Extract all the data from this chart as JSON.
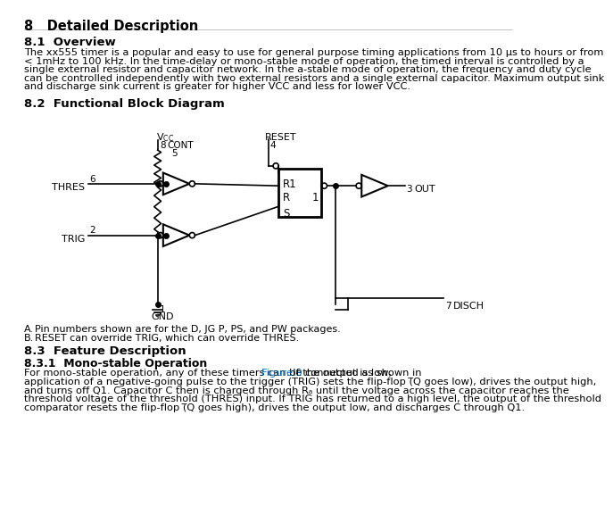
{
  "title_section": "8   Detailed Description",
  "section_81": "8.1  Overview",
  "para_81_lines": [
    "The xx555 timer is a popular and easy to use for general purpose timing applications from 10 μs to hours or from",
    "< 1mHz to 100 kHz. In the time-delay or mono-stable mode of operation, the timed interval is controlled by a",
    "single external resistor and capacitor network. In the a-stable mode of operation, the frequency and duty cycle",
    "can be controlled independently with two external resistors and a single external capacitor. Maximum output sink",
    "and discharge sink current is greater for higher VCC and less for lower VCC."
  ],
  "section_82": "8.2  Functional Block Diagram",
  "section_83": "8.3  Feature Description",
  "section_831": "8.3.1  Mono-stable Operation",
  "note_A": "Pin numbers shown are for the D, JG P, PS, and PW packages.",
  "note_B": "RESET can override TRIG, which can override THRES.",
  "para_831_lines": [
    "For mono-stable operation, any of these timers can be connected as shown in {Figure 9}. If the output is low,",
    "application of a negative-going pulse to the trigger (TRIG) sets the flip-flop (̅Q goes low), drives the output high,",
    "and turns off Q1. Capacitor C then is charged through Rₐ until the voltage across the capacitor reaches the",
    "threshold voltage of the threshold (THRES) input. If TRIG has returned to a high level, the output of the threshold",
    "comparator resets the flip-flop (̅Q goes high), drives the output low, and discharges C through Q1."
  ],
  "bg_color": "#ffffff",
  "text_color": "#000000",
  "link_color": "#0070c0"
}
